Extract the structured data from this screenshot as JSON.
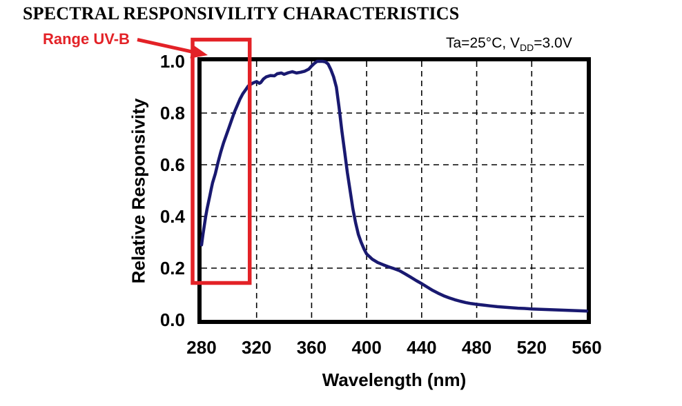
{
  "title": "SPECTRAL RESPONSIVILITY CHARACTERISTICS",
  "annotations": {
    "range_label": "Range UV-B",
    "conditions": {
      "prefix": "Ta=25°C, V",
      "sub": "DD",
      "suffix": "=3.0V"
    }
  },
  "colors": {
    "curve": "#191970",
    "highlight": "#e32227",
    "frame": "#000000",
    "grid": "#000000",
    "background": "#ffffff",
    "text": "#000000"
  },
  "chart_data": {
    "type": "line",
    "title": "SPECTRAL RESPONSIVILITY CHARACTERISTICS",
    "xlabel": "Wavelength (nm)",
    "ylabel": "Relative Responsivity",
    "xlim": [
      280,
      560
    ],
    "ylim": [
      0.0,
      1.0
    ],
    "x_ticks": [
      280,
      320,
      360,
      400,
      440,
      480,
      520,
      560
    ],
    "y_ticks": [
      "1.0",
      "0.8",
      "0.6",
      "0.4",
      "0.2",
      "0.0"
    ],
    "grid": "dashed",
    "legend": "none",
    "conditions_note": "Ta=25°C, VDD=3.0V",
    "highlight_box": {
      "label": "Range UV-B",
      "x_range_nm": [
        280,
        320
      ],
      "note": "UV-B wavelength range outlined in red"
    },
    "series": [
      {
        "name": "Relative responsivity",
        "color": "#191970",
        "points": [
          [
            280,
            0.29
          ],
          [
            281,
            0.33
          ],
          [
            282,
            0.365
          ],
          [
            283,
            0.4
          ],
          [
            284,
            0.43
          ],
          [
            285,
            0.455
          ],
          [
            286,
            0.48
          ],
          [
            287,
            0.505
          ],
          [
            288,
            0.53
          ],
          [
            290,
            0.565
          ],
          [
            292,
            0.61
          ],
          [
            294,
            0.65
          ],
          [
            296,
            0.685
          ],
          [
            298,
            0.715
          ],
          [
            300,
            0.745
          ],
          [
            302,
            0.775
          ],
          [
            304,
            0.805
          ],
          [
            306,
            0.83
          ],
          [
            308,
            0.855
          ],
          [
            310,
            0.875
          ],
          [
            312,
            0.89
          ],
          [
            314,
            0.905
          ],
          [
            316,
            0.912
          ],
          [
            318,
            0.918
          ],
          [
            320,
            0.922
          ],
          [
            322,
            0.915
          ],
          [
            323,
            0.918
          ],
          [
            325,
            0.932
          ],
          [
            327,
            0.94
          ],
          [
            330,
            0.945
          ],
          [
            333,
            0.944
          ],
          [
            335,
            0.952
          ],
          [
            338,
            0.955
          ],
          [
            340,
            0.95
          ],
          [
            343,
            0.956
          ],
          [
            346,
            0.96
          ],
          [
            349,
            0.955
          ],
          [
            352,
            0.958
          ],
          [
            355,
            0.962
          ],
          [
            358,
            0.97
          ],
          [
            360,
            0.982
          ],
          [
            362,
            0.992
          ],
          [
            364,
            1.0
          ],
          [
            366,
            1.0
          ],
          [
            368,
            1.0
          ],
          [
            370,
            0.998
          ],
          [
            372,
            0.99
          ],
          [
            374,
            0.968
          ],
          [
            376,
            0.94
          ],
          [
            378,
            0.9
          ],
          [
            380,
            0.82
          ],
          [
            382,
            0.73
          ],
          [
            384,
            0.65
          ],
          [
            386,
            0.57
          ],
          [
            388,
            0.5
          ],
          [
            390,
            0.43
          ],
          [
            392,
            0.375
          ],
          [
            394,
            0.33
          ],
          [
            396,
            0.3
          ],
          [
            398,
            0.275
          ],
          [
            400,
            0.255
          ],
          [
            404,
            0.235
          ],
          [
            408,
            0.222
          ],
          [
            412,
            0.213
          ],
          [
            416,
            0.205
          ],
          [
            420,
            0.198
          ],
          [
            424,
            0.19
          ],
          [
            428,
            0.178
          ],
          [
            432,
            0.165
          ],
          [
            436,
            0.152
          ],
          [
            440,
            0.14
          ],
          [
            444,
            0.127
          ],
          [
            448,
            0.114
          ],
          [
            452,
            0.103
          ],
          [
            456,
            0.093
          ],
          [
            460,
            0.085
          ],
          [
            464,
            0.078
          ],
          [
            468,
            0.072
          ],
          [
            472,
            0.067
          ],
          [
            476,
            0.063
          ],
          [
            480,
            0.06
          ],
          [
            485,
            0.057
          ],
          [
            490,
            0.054
          ],
          [
            495,
            0.051
          ],
          [
            500,
            0.049
          ],
          [
            505,
            0.047
          ],
          [
            510,
            0.045
          ],
          [
            515,
            0.044
          ],
          [
            520,
            0.042
          ],
          [
            525,
            0.041
          ],
          [
            530,
            0.04
          ],
          [
            535,
            0.039
          ],
          [
            540,
            0.038
          ],
          [
            545,
            0.037
          ],
          [
            550,
            0.036
          ],
          [
            555,
            0.035
          ],
          [
            560,
            0.034
          ]
        ]
      }
    ]
  }
}
